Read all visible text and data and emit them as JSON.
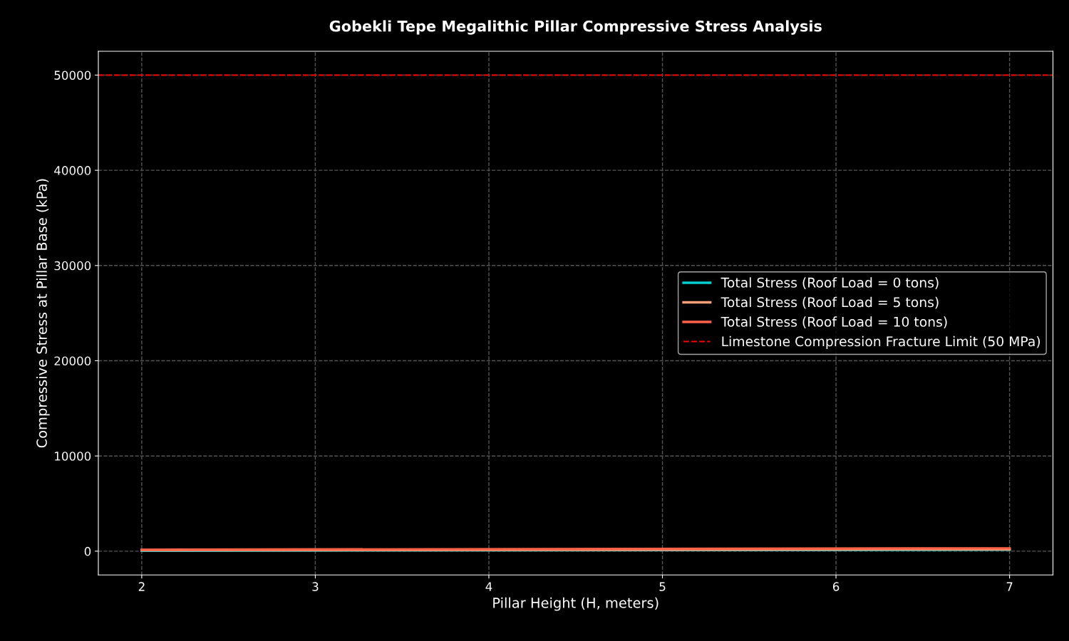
{
  "chart_data": {
    "type": "line",
    "title": "Gobekli Tepe Megalithic Pillar Compressive Stress Analysis",
    "xlabel": "Pillar Height (H, meters)",
    "ylabel": "Compressive Stress at Pillar Base (kPa)",
    "x": [
      2,
      7
    ],
    "series": [
      {
        "name": "Total Stress (Roof Load = 0 tons)",
        "color": "#00ced1",
        "values": [
          50,
          150
        ]
      },
      {
        "name": "Total Stress (Roof Load = 5 tons)",
        "color": "#ffa07a",
        "values": [
          100,
          200
        ]
      },
      {
        "name": "Total Stress (Roof Load = 10 tons)",
        "color": "#ff6347",
        "values": [
          150,
          300
        ]
      }
    ],
    "ref_lines": [
      {
        "axis": "y",
        "value": 50000,
        "label": "Limestone Compression Fracture Limit (50 MPa)",
        "color": "#ff0000",
        "line_style": "dashed"
      }
    ],
    "xlim": [
      1.75,
      7.25
    ],
    "ylim": [
      -2500,
      52500
    ],
    "xticks": [
      2,
      3,
      4,
      5,
      6,
      7
    ],
    "yticks": [
      0,
      10000,
      20000,
      30000,
      40000,
      50000
    ],
    "grid": true,
    "legend": "right",
    "line_style": "solid"
  }
}
